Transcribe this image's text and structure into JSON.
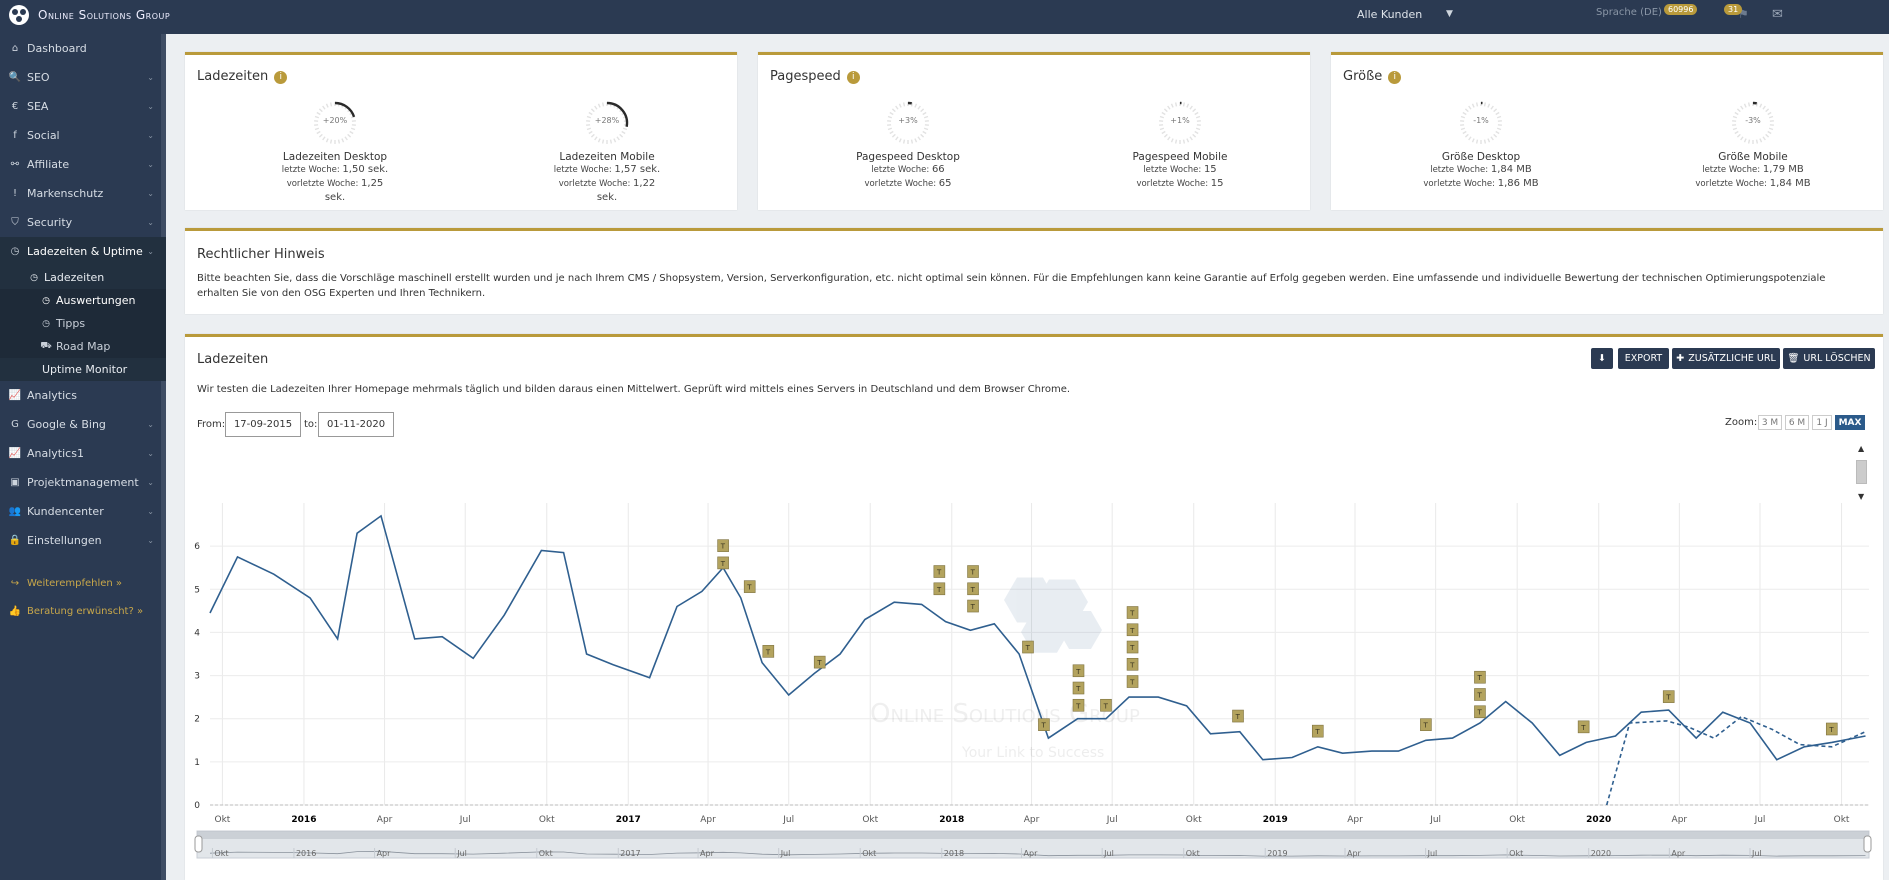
{
  "topbar": {
    "brand": "Online Solutions Group",
    "customer_select": "Alle Kunden",
    "language": "Sprache (DE)",
    "badge_notifications": "60996",
    "badge_tasks": "31"
  },
  "sidebar": {
    "items": [
      {
        "label": "Dashboard",
        "icon": "home-icon"
      },
      {
        "label": "SEO",
        "icon": "search-icon"
      },
      {
        "label": "SEA",
        "icon": "euro-icon"
      },
      {
        "label": "Social",
        "icon": "facebook-icon"
      },
      {
        "label": "Affiliate",
        "icon": "handshake-icon"
      },
      {
        "label": "Markenschutz",
        "icon": "exclamation-icon"
      },
      {
        "label": "Security",
        "icon": "shield-icon"
      },
      {
        "label": "Ladezeiten & Uptime",
        "icon": "clock-icon"
      }
    ],
    "sub_ladezeiten": "Ladezeiten",
    "sub_items": [
      "Auswertungen",
      "Tipps",
      "Road Map"
    ],
    "uptime_monitor": "Uptime Monitor",
    "items_after": [
      {
        "label": "Analytics",
        "icon": "line-chart-icon"
      },
      {
        "label": "Google & Bing",
        "icon": "google-icon"
      },
      {
        "label": "Analytics1",
        "icon": "line-chart-icon"
      },
      {
        "label": "Projektmanagement",
        "icon": "briefcase-icon"
      },
      {
        "label": "Kundencenter",
        "icon": "users-icon"
      },
      {
        "label": "Einstellungen",
        "icon": "lock-icon"
      }
    ],
    "recommend": "Weiterempfehlen »",
    "consult": "Beratung erwünscht? »"
  },
  "cards": [
    {
      "title": "Ladezeiten",
      "gauges": [
        {
          "pct": "+20%",
          "arc": 0.2,
          "title": "Ladezeiten Desktop",
          "last_label": "letzte Woche:",
          "last": "1,50 sek.",
          "prev_label": "vorletzte Woche:",
          "prev": "1,25 sek."
        },
        {
          "pct": "+28%",
          "arc": 0.28,
          "title": "Ladezeiten Mobile",
          "last_label": "letzte Woche:",
          "last": "1,57 sek.",
          "prev_label": "vorletzte Woche:",
          "prev": "1,22 sek."
        }
      ]
    },
    {
      "title": "Pagespeed",
      "gauges": [
        {
          "pct": "+3%",
          "arc": 0.03,
          "title": "Pagespeed Desktop",
          "last_label": "letzte Woche:",
          "last": "66",
          "prev_label": "vorletzte Woche:",
          "prev": "65"
        },
        {
          "pct": "+1%",
          "arc": 0.01,
          "title": "Pagespeed Mobile",
          "last_label": "letzte Woche:",
          "last": "15",
          "prev_label": "vorletzte Woche:",
          "prev": "15"
        }
      ]
    },
    {
      "title": "Größe",
      "gauges": [
        {
          "pct": "-1%",
          "arc": 0.01,
          "title": "Größe Desktop",
          "last_label": "letzte Woche:",
          "last": "1,84 MB",
          "prev_label": "vorletzte Woche:",
          "prev": "1,86 MB"
        },
        {
          "pct": "-3%",
          "arc": 0.03,
          "title": "Größe Mobile",
          "last_label": "letzte Woche:",
          "last": "1,79 MB",
          "prev_label": "vorletzte Woche:",
          "prev": "1,84 MB"
        }
      ]
    }
  ],
  "notice": {
    "title": "Rechtlicher Hinweis",
    "text": "Bitte beachten Sie, dass die Vorschläge maschinell erstellt wurden und je nach Ihrem CMS / Shopsystem, Version, Serverkonfiguration, etc. nicht optimal sein können. Für die Empfehlungen kann keine Garantie auf Erfolg gegeben werden. Eine umfassende und individuelle Bewertung der technischen Optimierungspotenziale erhalten Sie von den OSG Experten und Ihren Technikern."
  },
  "chart_card": {
    "title": "Ladezeiten",
    "export": "EXPORT",
    "add_url": "ZUSÄTZLICHE URL",
    "delete_url": "URL LÖSCHEN",
    "description": "Wir testen die Ladezeiten Ihrer Homepage mehrmals täglich und bilden daraus einen Mittelwert. Geprüft wird mittels eines Servers in Deutschland und dem Browser Chrome.",
    "from_label": "From:",
    "from": "17-09-2015",
    "to_label": "to:",
    "to": "01-11-2020",
    "zoom_label": "Zoom:",
    "zoom": [
      "3 M",
      "6 M",
      "1 J",
      "MAX"
    ],
    "watermark_title": "Online Solutions Group",
    "watermark_sub": "Your Link to Success",
    "flag_label": "T"
  },
  "chart_data": {
    "type": "line",
    "ylim": [
      0,
      7
    ],
    "yticks": [
      0,
      1,
      2,
      3,
      4,
      5,
      6
    ],
    "xlim": [
      "2015-09-17",
      "2020-11-01"
    ],
    "xticks": [
      {
        "label": "Okt",
        "date": "2015-10-01"
      },
      {
        "label": "2016",
        "date": "2016-01-01",
        "bold": true
      },
      {
        "label": "Apr",
        "date": "2016-04-01"
      },
      {
        "label": "Jul",
        "date": "2016-07-01"
      },
      {
        "label": "Okt",
        "date": "2016-10-01"
      },
      {
        "label": "2017",
        "date": "2017-01-01",
        "bold": true
      },
      {
        "label": "Apr",
        "date": "2017-04-01"
      },
      {
        "label": "Jul",
        "date": "2017-07-01"
      },
      {
        "label": "Okt",
        "date": "2017-10-01"
      },
      {
        "label": "2018",
        "date": "2018-01-01",
        "bold": true
      },
      {
        "label": "Apr",
        "date": "2018-04-01"
      },
      {
        "label": "Jul",
        "date": "2018-07-01"
      },
      {
        "label": "Okt",
        "date": "2018-10-01"
      },
      {
        "label": "2019",
        "date": "2019-01-01",
        "bold": true
      },
      {
        "label": "Apr",
        "date": "2019-04-01"
      },
      {
        "label": "Jul",
        "date": "2019-07-01"
      },
      {
        "label": "Okt",
        "date": "2019-10-01"
      },
      {
        "label": "2020",
        "date": "2020-01-01",
        "bold": true
      },
      {
        "label": "Apr",
        "date": "2020-04-01"
      },
      {
        "label": "Jul",
        "date": "2020-07-01"
      },
      {
        "label": "Okt",
        "date": "2020-10-01"
      }
    ],
    "navigator_ticks": [
      {
        "label": "Okt",
        "date": "2015-10-01"
      },
      {
        "label": "2016",
        "date": "2016-01-01"
      },
      {
        "label": "Apr",
        "date": "2016-04-01"
      },
      {
        "label": "Jul",
        "date": "2016-07-01"
      },
      {
        "label": "Okt",
        "date": "2016-10-01"
      },
      {
        "label": "2017",
        "date": "2017-01-01"
      },
      {
        "label": "Apr",
        "date": "2017-04-01"
      },
      {
        "label": "Jul",
        "date": "2017-07-01"
      },
      {
        "label": "Okt",
        "date": "2017-10-01"
      },
      {
        "label": "2018",
        "date": "2018-01-01"
      },
      {
        "label": "Apr",
        "date": "2018-04-01"
      },
      {
        "label": "Jul",
        "date": "2018-07-01"
      },
      {
        "label": "Okt",
        "date": "2018-10-01"
      },
      {
        "label": "2019",
        "date": "2019-01-01"
      },
      {
        "label": "Apr",
        "date": "2019-04-01"
      },
      {
        "label": "Jul",
        "date": "2019-07-01"
      },
      {
        "label": "Okt",
        "date": "2019-10-01"
      },
      {
        "label": "2020",
        "date": "2020-01-01"
      },
      {
        "label": "Apr",
        "date": "2020-04-01"
      },
      {
        "label": "Jul",
        "date": "2020-07-01"
      }
    ],
    "series": [
      {
        "style": "solid",
        "points": [
          [
            "2015-09-17",
            4.45
          ],
          [
            "2015-10-18",
            5.75
          ],
          [
            "2015-11-28",
            5.35
          ],
          [
            "2016-01-08",
            4.8
          ],
          [
            "2016-02-08",
            3.85
          ],
          [
            "2016-03-01",
            6.3
          ],
          [
            "2016-03-28",
            6.7
          ],
          [
            "2016-05-05",
            3.85
          ],
          [
            "2016-06-05",
            3.9
          ],
          [
            "2016-07-10",
            3.4
          ],
          [
            "2016-08-14",
            4.4
          ],
          [
            "2016-09-25",
            5.9
          ],
          [
            "2016-10-20",
            5.85
          ],
          [
            "2016-11-15",
            3.5
          ],
          [
            "2016-12-15",
            3.25
          ],
          [
            "2017-01-25",
            2.95
          ],
          [
            "2017-02-25",
            4.6
          ],
          [
            "2017-03-25",
            4.95
          ],
          [
            "2017-04-18",
            5.5
          ],
          [
            "2017-05-08",
            4.8
          ],
          [
            "2017-06-01",
            3.3
          ],
          [
            "2017-07-01",
            2.55
          ],
          [
            "2017-07-30",
            3.05
          ],
          [
            "2017-08-28",
            3.5
          ],
          [
            "2017-09-25",
            4.3
          ],
          [
            "2017-10-28",
            4.7
          ],
          [
            "2017-11-28",
            4.65
          ],
          [
            "2017-12-25",
            4.25
          ],
          [
            "2018-01-22",
            4.05
          ],
          [
            "2018-02-18",
            4.2
          ],
          [
            "2018-03-18",
            3.5
          ],
          [
            "2018-04-20",
            1.55
          ],
          [
            "2018-05-23",
            2.0
          ],
          [
            "2018-06-24",
            2.0
          ],
          [
            "2018-07-20",
            2.5
          ],
          [
            "2018-08-22",
            2.5
          ],
          [
            "2018-09-23",
            2.3
          ],
          [
            "2018-10-20",
            1.65
          ],
          [
            "2018-11-22",
            1.7
          ],
          [
            "2018-12-18",
            1.05
          ],
          [
            "2019-01-20",
            1.1
          ],
          [
            "2019-02-18",
            1.35
          ],
          [
            "2019-03-18",
            1.2
          ],
          [
            "2019-04-20",
            1.25
          ],
          [
            "2019-05-20",
            1.25
          ],
          [
            "2019-06-20",
            1.5
          ],
          [
            "2019-07-20",
            1.55
          ],
          [
            "2019-08-20",
            1.9
          ],
          [
            "2019-09-18",
            2.4
          ],
          [
            "2019-10-18",
            1.9
          ],
          [
            "2019-11-18",
            1.15
          ],
          [
            "2019-12-18",
            1.45
          ],
          [
            "2020-01-20",
            1.6
          ],
          [
            "2020-02-18",
            2.15
          ],
          [
            "2020-03-20",
            2.2
          ],
          [
            "2020-04-20",
            1.55
          ],
          [
            "2020-05-20",
            2.15
          ],
          [
            "2020-06-20",
            1.9
          ],
          [
            "2020-07-20",
            1.05
          ],
          [
            "2020-08-20",
            1.35
          ],
          [
            "2020-09-20",
            1.45
          ],
          [
            "2020-10-28",
            1.6
          ]
        ]
      },
      {
        "style": "dashed",
        "points": [
          [
            "2020-01-10",
            0.0
          ],
          [
            "2020-02-05",
            1.9
          ],
          [
            "2020-03-18",
            1.95
          ],
          [
            "2020-04-12",
            1.8
          ],
          [
            "2020-05-10",
            1.55
          ],
          [
            "2020-06-10",
            2.05
          ],
          [
            "2020-07-15",
            1.75
          ],
          [
            "2020-08-15",
            1.4
          ],
          [
            "2020-09-20",
            1.35
          ],
          [
            "2020-10-28",
            1.7
          ]
        ]
      }
    ],
    "flags": [
      {
        "date": "2017-04-18",
        "y": 6.0
      },
      {
        "date": "2017-04-18",
        "y": 5.6
      },
      {
        "date": "2017-05-18",
        "y": 5.05
      },
      {
        "date": "2017-06-08",
        "y": 3.55
      },
      {
        "date": "2017-08-05",
        "y": 3.3
      },
      {
        "date": "2017-12-18",
        "y": 5.4
      },
      {
        "date": "2017-12-18",
        "y": 5.0
      },
      {
        "date": "2018-01-25",
        "y": 5.4
      },
      {
        "date": "2018-01-25",
        "y": 5.0
      },
      {
        "date": "2018-01-25",
        "y": 4.6
      },
      {
        "date": "2018-03-28",
        "y": 3.65
      },
      {
        "date": "2018-04-15",
        "y": 1.85
      },
      {
        "date": "2018-05-24",
        "y": 3.1
      },
      {
        "date": "2018-05-24",
        "y": 2.7
      },
      {
        "date": "2018-05-24",
        "y": 2.3
      },
      {
        "date": "2018-06-24",
        "y": 2.3
      },
      {
        "date": "2018-07-24",
        "y": 4.45
      },
      {
        "date": "2018-07-24",
        "y": 4.05
      },
      {
        "date": "2018-07-24",
        "y": 3.65
      },
      {
        "date": "2018-07-24",
        "y": 3.25
      },
      {
        "date": "2018-07-24",
        "y": 2.85
      },
      {
        "date": "2018-11-20",
        "y": 2.05
      },
      {
        "date": "2019-02-18",
        "y": 1.7
      },
      {
        "date": "2019-06-20",
        "y": 1.85
      },
      {
        "date": "2019-08-20",
        "y": 2.95
      },
      {
        "date": "2019-08-20",
        "y": 2.55
      },
      {
        "date": "2019-08-20",
        "y": 2.15
      },
      {
        "date": "2019-12-15",
        "y": 1.8
      },
      {
        "date": "2020-03-20",
        "y": 2.5
      },
      {
        "date": "2020-09-20",
        "y": 1.75
      }
    ]
  }
}
